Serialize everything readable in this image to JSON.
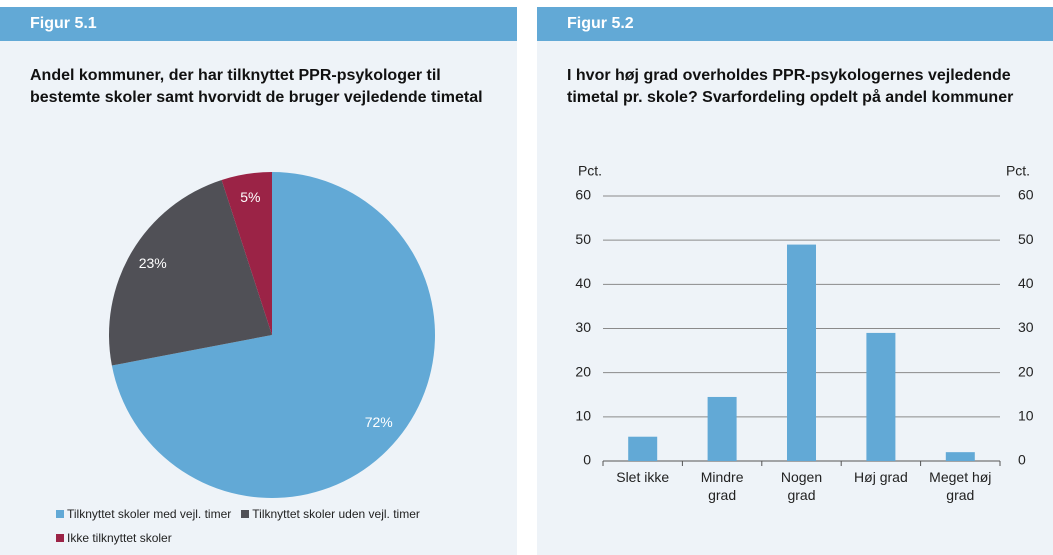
{
  "chart_data": [
    {
      "type": "pie",
      "header": "Figur 5.1",
      "title": "Andel kommuner, der har tilknyttet PPR-psykologer til bestemte skoler samt hvorvidt de bruger vejledende timetal",
      "categories": [
        "Tilknyttet skoler med vejl. timer",
        "Tilknyttet skoler uden vejl. timer",
        "Ikke tilknyttet skoler"
      ],
      "values": [
        72,
        23,
        5
      ],
      "value_labels": [
        "72%",
        "23%",
        "5%"
      ],
      "colors": [
        "#62a9d6",
        "#505056",
        "#9b2346"
      ],
      "legend": "bottom"
    },
    {
      "type": "bar",
      "header": "Figur 5.2",
      "title": "I hvor høj grad overholdes PPR-psykologernes vejledende timetal pr. skole? Svarfordeling opdelt på andel kommuner",
      "categories": [
        "Slet ikke",
        "Mindre grad",
        "Nogen grad",
        "Høj grad",
        "Meget høj grad"
      ],
      "values": [
        5.5,
        14.5,
        49,
        29,
        2
      ],
      "color": "#62a9d6",
      "y_label": "Pct.",
      "y2_label": "Pct.",
      "ylim": [
        0,
        60
      ],
      "yticks": [
        0,
        10,
        20,
        30,
        40,
        50,
        60
      ],
      "y2lim": [
        0,
        60
      ],
      "y2ticks": [
        0,
        10,
        20,
        30,
        40,
        50,
        60
      ],
      "grid": true
    }
  ]
}
